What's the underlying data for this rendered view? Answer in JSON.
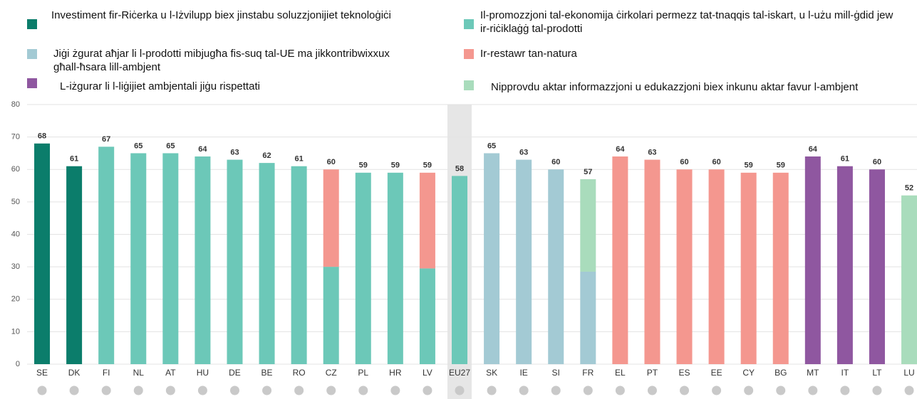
{
  "chart_data": {
    "type": "stacked_bar",
    "categories": [
      "SE",
      "DK",
      "FI",
      "NL",
      "AT",
      "HU",
      "DE",
      "BE",
      "RO",
      "CZ",
      "PL",
      "HR",
      "LV",
      "EU27",
      "SK",
      "IE",
      "SI",
      "FR",
      "EL",
      "PT",
      "ES",
      "EE",
      "CY",
      "BG",
      "MT",
      "IT",
      "LT",
      "LU"
    ],
    "series": [
      {
        "name": "Investiment fir-Riċerka u l-Iżvilupp biex jinstabu soluzzjonijiet teknoloġiċi",
        "color": "#0b7d6b",
        "values": [
          68,
          61,
          null,
          null,
          null,
          null,
          null,
          null,
          null,
          null,
          null,
          null,
          null,
          null,
          null,
          null,
          null,
          null,
          null,
          null,
          null,
          null,
          null,
          null,
          null,
          null,
          null,
          null
        ]
      },
      {
        "name": "Il-promozzjoni tal-ekonomija ċirkolari permezz tat-tnaqqis tal-iskart, u l-użu mill-ġdid jew ir-riċiklaġġ tal-prodotti",
        "color": "#6cc8b8",
        "values": [
          null,
          null,
          67,
          65,
          65,
          64,
          63,
          62,
          61,
          30,
          59,
          59,
          29.5,
          58,
          null,
          null,
          null,
          null,
          null,
          null,
          null,
          null,
          null,
          null,
          null,
          null,
          null,
          null
        ]
      },
      {
        "name": "Jiġi żgurat aħjar li l-prodotti mibjugħa fis-suq tal-UE ma jikkontribwixxux għall-ħsara lill-ambjent",
        "color": "#a3cad4",
        "values": [
          null,
          null,
          null,
          null,
          null,
          null,
          null,
          null,
          null,
          null,
          null,
          null,
          null,
          null,
          65,
          63,
          60,
          28.5,
          null,
          null,
          null,
          null,
          null,
          null,
          null,
          null,
          null,
          null
        ]
      },
      {
        "name": "Ir-restawr tan-natura",
        "color": "#f4978f",
        "values": [
          null,
          null,
          null,
          null,
          null,
          null,
          null,
          null,
          null,
          30,
          null,
          null,
          29.5,
          null,
          null,
          null,
          null,
          null,
          64,
          63,
          60,
          60,
          59,
          59,
          null,
          null,
          null,
          null
        ]
      },
      {
        "name": "L-iżgurar li l-liġijiet ambjentali jiġu rispettati",
        "color": "#8f57a0",
        "values": [
          null,
          null,
          null,
          null,
          null,
          null,
          null,
          null,
          null,
          null,
          null,
          null,
          null,
          null,
          null,
          null,
          null,
          null,
          null,
          null,
          null,
          null,
          null,
          null,
          64,
          61,
          60,
          null
        ]
      },
      {
        "name": "Nipprovdu aktar informazzjoni u edukazzjoni biex inkunu aktar favur l-ambjent",
        "color": "#a9dcbc",
        "values": [
          null,
          null,
          null,
          null,
          null,
          null,
          null,
          null,
          null,
          null,
          null,
          null,
          null,
          null,
          null,
          null,
          null,
          28.5,
          null,
          null,
          null,
          null,
          null,
          null,
          null,
          null,
          null,
          52
        ]
      }
    ],
    "totals": [
      68,
      61,
      67,
      65,
      65,
      64,
      63,
      62,
      61,
      60,
      59,
      59,
      59,
      58,
      65,
      63,
      60,
      57,
      64,
      63,
      60,
      60,
      59,
      59,
      64,
      61,
      60,
      52
    ],
    "ylim": [
      0,
      80
    ],
    "yticks": [
      0,
      10,
      20,
      30,
      40,
      50,
      60,
      70,
      80
    ],
    "grid": true,
    "highlight": 13
  }
}
